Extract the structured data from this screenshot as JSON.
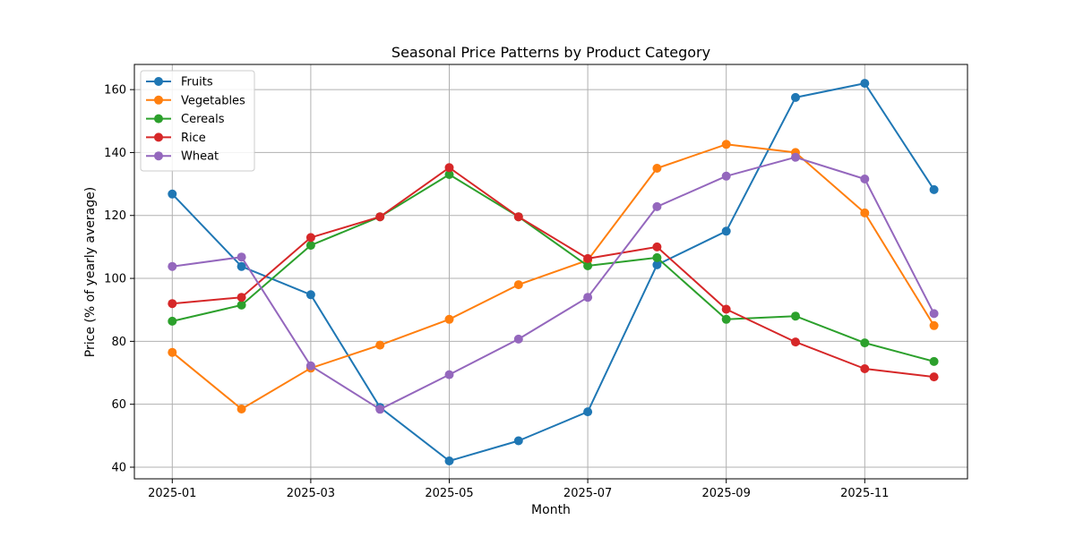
{
  "chart_data": {
    "type": "line",
    "title": "Seasonal Price Patterns by Product Category",
    "xlabel": "Month",
    "ylabel": "Price (% of yearly average)",
    "x": [
      "2025-01",
      "2025-02",
      "2025-03",
      "2025-04",
      "2025-05",
      "2025-06",
      "2025-07",
      "2025-08",
      "2025-09",
      "2025-10",
      "2025-11",
      "2025-12"
    ],
    "x_ticks": [
      "2025-01",
      "2025-03",
      "2025-05",
      "2025-07",
      "2025-09",
      "2025-11"
    ],
    "y_ticks": [
      40,
      60,
      80,
      100,
      120,
      140,
      160
    ],
    "ylim": [
      36.3,
      168
    ],
    "grid": true,
    "legend_position": "top-left",
    "series": [
      {
        "name": "Fruits",
        "color": "#1f77b4",
        "values": [
          126.8,
          103.8,
          94.8,
          59.0,
          42.0,
          48.4,
          57.6,
          104.3,
          115.0,
          157.5,
          162.0,
          128.2
        ]
      },
      {
        "name": "Vegetables",
        "color": "#ff7f0e",
        "values": [
          76.5,
          58.5,
          71.5,
          78.8,
          87.0,
          98.0,
          105.8,
          135.0,
          142.6,
          140.0,
          120.8,
          85.0
        ]
      },
      {
        "name": "Cereals",
        "color": "#2ca02c",
        "values": [
          86.4,
          91.5,
          110.5,
          119.6,
          133.0,
          119.6,
          104.0,
          106.6,
          87.0,
          88.0,
          79.5,
          73.6
        ]
      },
      {
        "name": "Rice",
        "color": "#d62728",
        "values": [
          92.0,
          94.0,
          113.0,
          119.6,
          135.2,
          119.6,
          106.3,
          110.0,
          90.2,
          79.8,
          71.3,
          68.7
        ]
      },
      {
        "name": "Wheat",
        "color": "#9467bd",
        "values": [
          103.8,
          106.8,
          72.2,
          58.4,
          69.4,
          80.7,
          94.0,
          122.8,
          132.5,
          138.5,
          131.6,
          88.8
        ]
      }
    ]
  }
}
